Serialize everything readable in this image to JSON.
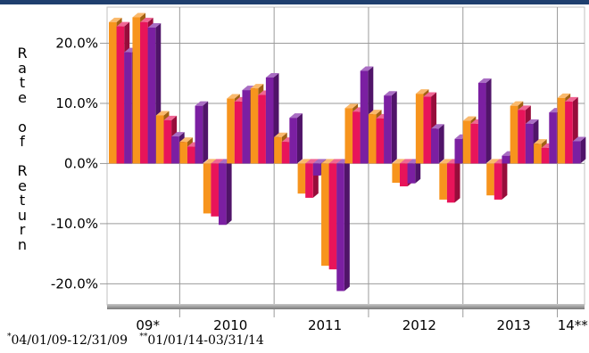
{
  "chart_data": {
    "type": "bar",
    "ylabel": "Rate of Return",
    "y_ticks": [
      "20.0%",
      "10.0%",
      "0.0%",
      "-10.0%",
      "-20.0%"
    ],
    "ylim": [
      -23.5,
      26
    ],
    "categories": [
      "09*",
      "2010",
      "2011",
      "2012",
      "2013",
      "14**"
    ],
    "grid": true,
    "legend": "none",
    "colors": [
      "#f7941d",
      "#f05a28",
      "#e8145a",
      "#a3167a",
      "#7b1fa2"
    ],
    "groups": [
      {
        "category": "09*",
        "values": [
          23.5,
          22.8,
          18.5
        ]
      },
      {
        "category": "09*",
        "values": [
          24.3,
          23.5,
          22.6
        ]
      },
      {
        "category": "09*",
        "values": [
          8.0,
          7.2,
          4.5
        ]
      },
      {
        "category": "2010",
        "values": [
          3.6,
          2.8,
          9.6
        ]
      },
      {
        "category": "2010",
        "values": [
          -8.3,
          -8.8,
          -10.2
        ]
      },
      {
        "category": "2010",
        "values": [
          10.8,
          10.3,
          12.2
        ]
      },
      {
        "category": "2010",
        "values": [
          12.5,
          11.4,
          14.3
        ]
      },
      {
        "category": "2011",
        "values": [
          4.4,
          3.6,
          7.6
        ]
      },
      {
        "category": "2011",
        "values": [
          -5.0,
          -5.7,
          -2.0
        ]
      },
      {
        "category": "2011",
        "values": [
          -17.0,
          -17.6,
          -21.2
        ]
      },
      {
        "category": "2011",
        "values": [
          9.2,
          8.6,
          15.4
        ]
      },
      {
        "category": "2012",
        "values": [
          8.2,
          7.5,
          11.3
        ]
      },
      {
        "category": "2012",
        "values": [
          -3.2,
          -3.8,
          -3.3
        ]
      },
      {
        "category": "2012",
        "values": [
          11.6,
          11.1,
          5.8
        ]
      },
      {
        "category": "2012",
        "values": [
          -6.0,
          -6.5,
          4.1
        ]
      },
      {
        "category": "2013",
        "values": [
          7.1,
          6.6,
          13.4
        ]
      },
      {
        "category": "2013",
        "values": [
          -5.3,
          -6.0,
          1.3
        ]
      },
      {
        "category": "2013",
        "values": [
          9.6,
          8.9,
          6.6
        ]
      },
      {
        "category": "2013",
        "values": [
          3.3,
          2.6,
          8.5
        ]
      },
      {
        "category": "14**",
        "values": [
          10.9,
          10.3,
          3.7
        ]
      }
    ]
  },
  "footnote": {
    "mark1": "*",
    "text1": "04/01/09-12/31/09",
    "mark2": "**",
    "text2": "01/01/14-03/31/14"
  }
}
